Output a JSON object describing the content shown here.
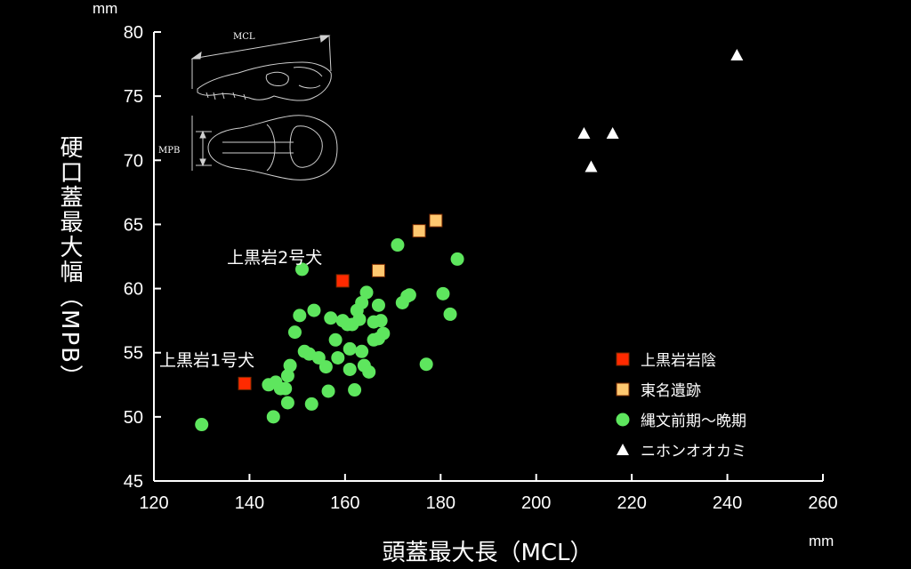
{
  "chart_data": {
    "type": "scatter",
    "title": "",
    "xlabel": "頭蓋最大長（MCL）",
    "ylabel": "硬口蓋最大幅（MPB）",
    "xunit": "mm",
    "yunit": "mm",
    "xlim": [
      120,
      260
    ],
    "ylim": [
      45,
      80
    ],
    "xticks": [
      120,
      140,
      160,
      180,
      200,
      220,
      240,
      260
    ],
    "yticks": [
      45,
      50,
      55,
      60,
      65,
      70,
      75,
      80
    ],
    "grid": false,
    "legend_position": "right",
    "series": [
      {
        "name": "上黒岩岩陰",
        "marker": "square",
        "color": "#ff2a00",
        "points": [
          [
            139,
            52.6
          ],
          [
            159.5,
            60.6
          ]
        ]
      },
      {
        "name": "東名遺跡",
        "marker": "square",
        "color": "#ffc870",
        "points": [
          [
            167,
            61.4
          ],
          [
            175.5,
            64.5
          ],
          [
            179,
            65.3
          ]
        ]
      },
      {
        "name": "縄文前期～晩期",
        "marker": "circle",
        "color": "#5ee65e",
        "points": [
          [
            130,
            49.4
          ],
          [
            144,
            52.5
          ],
          [
            145,
            50
          ],
          [
            145.5,
            52.7
          ],
          [
            146.5,
            52.2
          ],
          [
            147.5,
            52.2
          ],
          [
            148,
            53.2
          ],
          [
            148,
            51.1
          ],
          [
            148.5,
            54
          ],
          [
            149.5,
            56.6
          ],
          [
            150.5,
            57.9
          ],
          [
            151,
            61.5
          ],
          [
            151.5,
            55.1
          ],
          [
            152.5,
            54.9
          ],
          [
            153,
            51
          ],
          [
            153.5,
            58.3
          ],
          [
            154.5,
            54.6
          ],
          [
            156,
            53.9
          ],
          [
            156.5,
            52
          ],
          [
            157,
            57.7
          ],
          [
            158,
            56
          ],
          [
            158.5,
            54.6
          ],
          [
            159.5,
            57.5
          ],
          [
            160.5,
            57.2
          ],
          [
            161,
            55.3
          ],
          [
            161,
            53.7
          ],
          [
            161.5,
            57.2
          ],
          [
            162,
            52.1
          ],
          [
            162.5,
            58.3
          ],
          [
            163,
            57.6
          ],
          [
            163.5,
            55.1
          ],
          [
            163.5,
            58.9
          ],
          [
            164,
            54
          ],
          [
            164.5,
            59.7
          ],
          [
            165,
            53.5
          ],
          [
            166,
            56
          ],
          [
            166,
            57.4
          ],
          [
            167,
            58.7
          ],
          [
            167,
            56.1
          ],
          [
            167.5,
            57.5
          ],
          [
            168,
            56.5
          ],
          [
            171,
            63.4
          ],
          [
            172,
            58.9
          ],
          [
            173,
            59.4
          ],
          [
            173.5,
            59.5
          ],
          [
            177,
            54.1
          ],
          [
            180.5,
            59.6
          ],
          [
            182,
            58
          ],
          [
            183.5,
            62.3
          ]
        ]
      },
      {
        "name": "ニホンオオカミ",
        "marker": "triangle",
        "color": "#ffffff",
        "points": [
          [
            210,
            72.1
          ],
          [
            211.5,
            69.5
          ],
          [
            216,
            72.1
          ],
          [
            242,
            78.2
          ]
        ]
      }
    ],
    "annotations": [
      {
        "text": "上黒岩1号犬",
        "x": 139,
        "y": 52.6
      },
      {
        "text": "上黒岩2号犬",
        "x": 159.5,
        "y": 60.6
      }
    ],
    "inset_labels": {
      "top": "MCL",
      "bottom": "MPB"
    }
  },
  "icons": {
    "inset": "dog-skull-diagram-icon"
  }
}
